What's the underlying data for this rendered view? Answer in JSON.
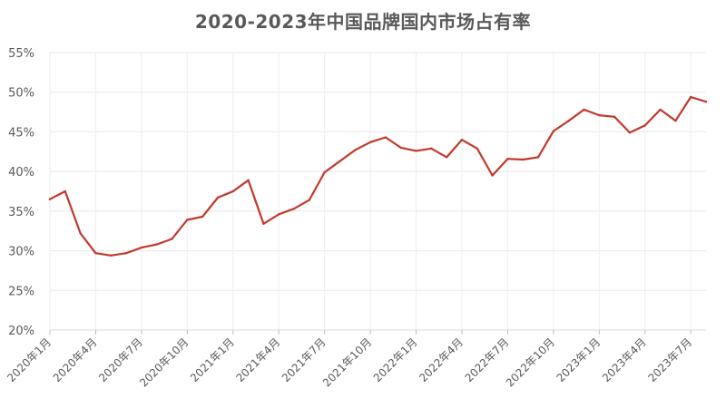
{
  "chart_data": {
    "type": "line",
    "title": "2020-2023年中国品牌国内市场占有率",
    "xlabel": "",
    "ylabel": "",
    "ylim": [
      20,
      55
    ],
    "yticks": [
      20,
      25,
      30,
      35,
      40,
      45,
      50,
      55
    ],
    "ytick_labels": [
      "20%",
      "25%",
      "30%",
      "35%",
      "40%",
      "45%",
      "50%",
      "55%"
    ],
    "x": [
      "2020年1月",
      "2020年2月",
      "2020年3月",
      "2020年4月",
      "2020年5月",
      "2020年6月",
      "2020年7月",
      "2020年8月",
      "2020年9月",
      "2020年10月",
      "2020年11月",
      "2020年12月",
      "2021年1月",
      "2021年2月",
      "2021年3月",
      "2021年4月",
      "2021年5月",
      "2021年6月",
      "2021年7月",
      "2021年8月",
      "2021年9月",
      "2021年10月",
      "2021年11月",
      "2021年12月",
      "2022年1月",
      "2022年2月",
      "2022年3月",
      "2022年4月",
      "2022年5月",
      "2022年6月",
      "2022年7月",
      "2022年8月",
      "2022年9月",
      "2022年10月",
      "2022年11月",
      "2022年12月",
      "2023年1月",
      "2023年2月",
      "2023年3月",
      "2023年4月",
      "2023年5月",
      "2023年6月",
      "2023年7月",
      "2023年8月"
    ],
    "xtick_labels": [
      "2020年1月",
      "2020年4月",
      "2020年7月",
      "2020年10月",
      "2021年1月",
      "2021年4月",
      "2021年7月",
      "2021年10月",
      "2022年1月",
      "2022年4月",
      "2022年7月",
      "2022年10月",
      "2023年1月",
      "2023年4月",
      "2023年7月"
    ],
    "xtick_every": 3,
    "series": [
      {
        "values": [
          36.5,
          37.5,
          32.2,
          29.7,
          29.4,
          29.7,
          30.4,
          30.8,
          31.5,
          33.9,
          34.3,
          36.7,
          37.5,
          38.9,
          33.4,
          34.6,
          35.3,
          36.4,
          39.9,
          41.3,
          42.7,
          43.7,
          44.3,
          43.0,
          42.6,
          42.9,
          41.8,
          44.0,
          42.9,
          39.5,
          41.6,
          41.5,
          41.8,
          45.1,
          46.4,
          47.8,
          47.1,
          46.9,
          44.9,
          45.8,
          47.8,
          46.4,
          49.4,
          48.8
        ],
        "color": "#c0392b"
      }
    ],
    "grid": true,
    "legend": "none",
    "colors": {
      "line": "#c0392b",
      "grid": "#e8e8e8",
      "text": "#595959"
    }
  }
}
